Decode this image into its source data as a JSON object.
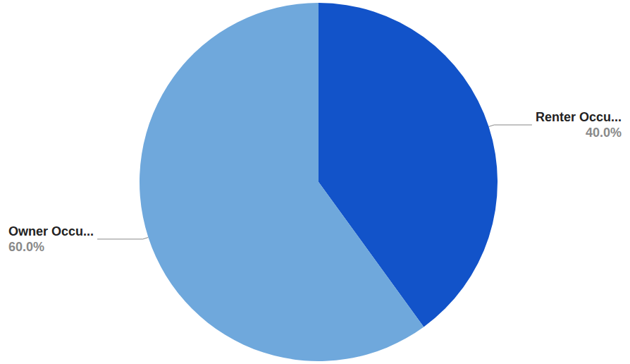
{
  "chart_data": {
    "type": "pie",
    "categories": [
      "Renter Occu...",
      "Owner Occu..."
    ],
    "values": [
      40,
      60
    ],
    "value_labels": [
      "40.0%",
      "60.0%"
    ],
    "colors": [
      "#1253c9",
      "#6fa8dc"
    ],
    "data_labels": true
  }
}
